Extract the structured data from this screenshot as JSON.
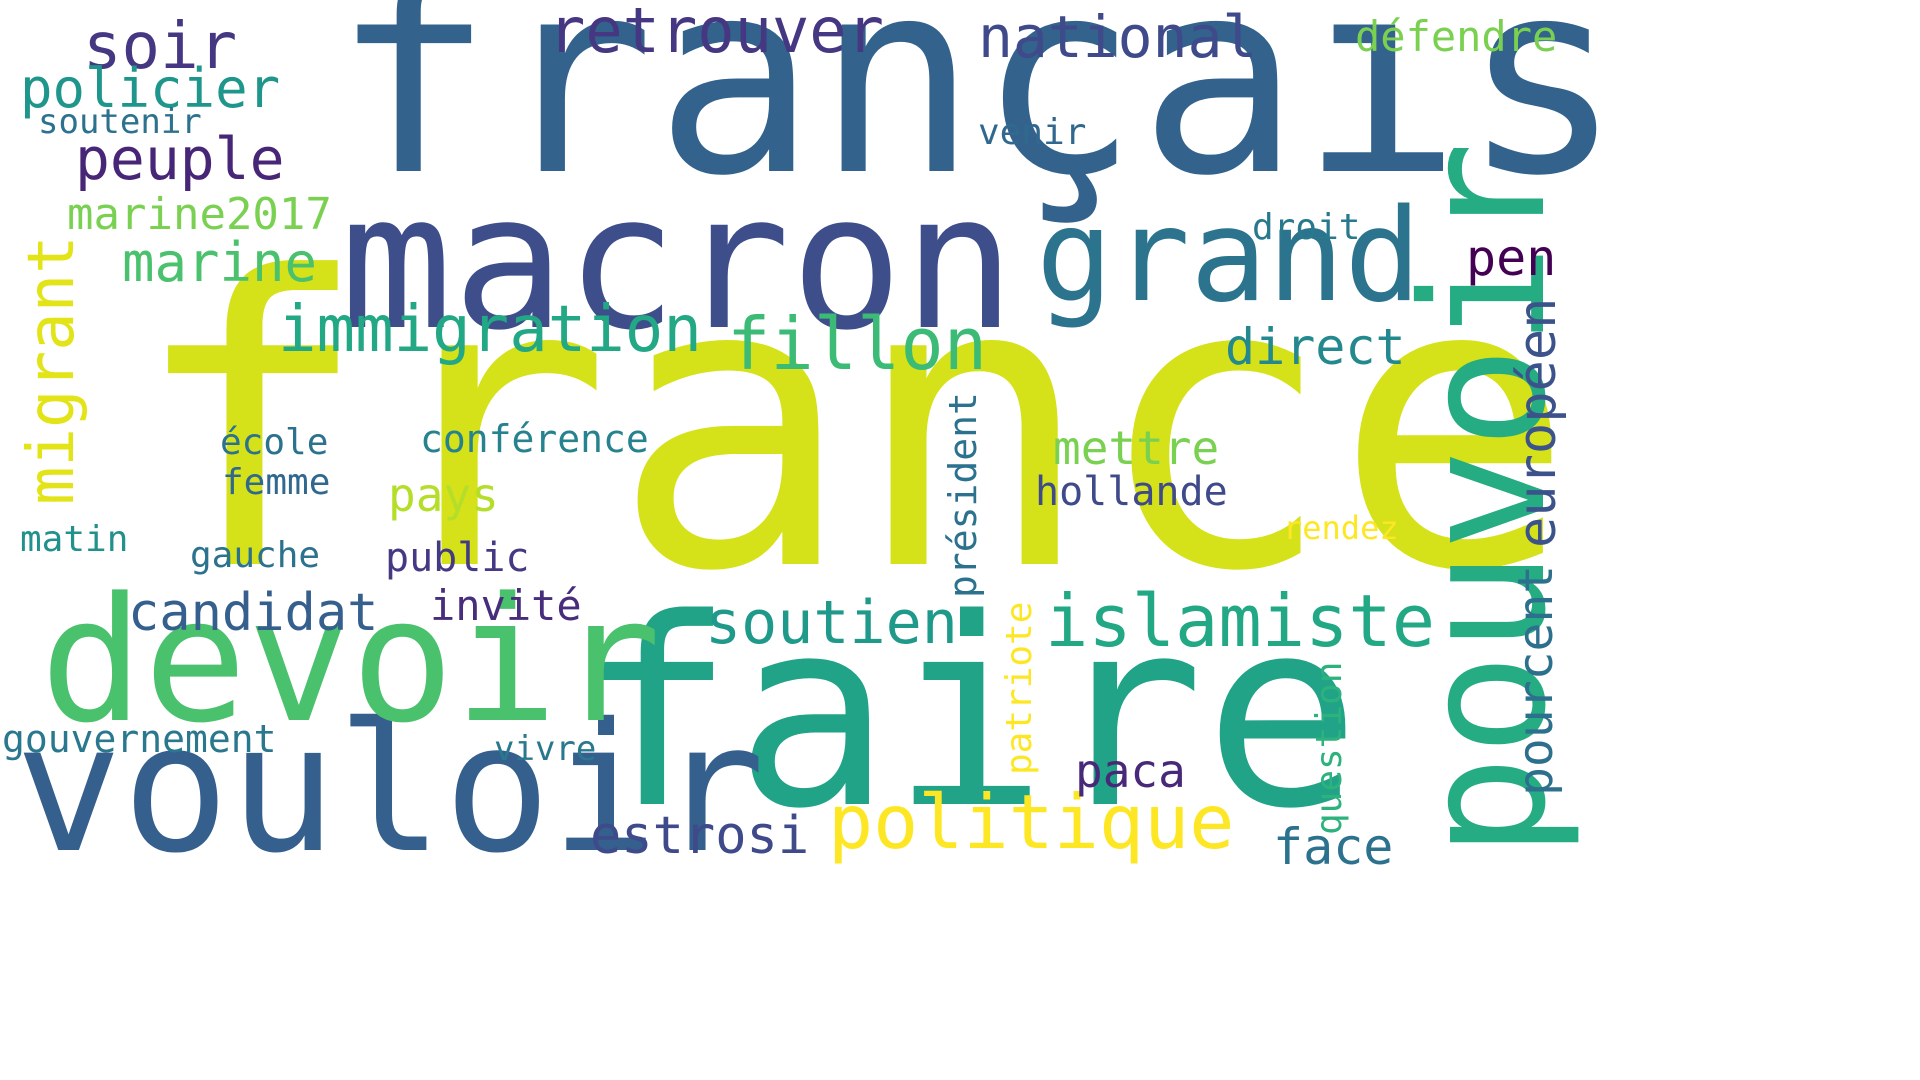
{
  "cloud": {
    "words": [
      {
        "text": "france",
        "color": "#d5e21a"
      },
      {
        "text": "français",
        "color": "#33638d"
      },
      {
        "text": "faire",
        "color": "#20a386"
      },
      {
        "text": "macron",
        "color": "#3d4e8a"
      },
      {
        "text": "vouloir",
        "color": "#355f8d"
      },
      {
        "text": "devoir",
        "color": "#4ac16d"
      },
      {
        "text": "pouvoir",
        "color": "#25ac82"
      },
      {
        "text": "grand",
        "color": "#2c738e"
      },
      {
        "text": "politique",
        "color": "#fde725"
      },
      {
        "text": "immigration",
        "color": "#22a884"
      },
      {
        "text": "islamiste",
        "color": "#22a884"
      },
      {
        "text": "fillon",
        "color": "#3bbb75"
      },
      {
        "text": "migrant",
        "color": "#e2e418"
      },
      {
        "text": "retrouver",
        "color": "#453781"
      },
      {
        "text": "soir",
        "color": "#453781"
      },
      {
        "text": "national",
        "color": "#3e4a89"
      },
      {
        "text": "policier",
        "color": "#1f968b"
      },
      {
        "text": "peuple",
        "color": "#482677"
      },
      {
        "text": "marine",
        "color": "#4ac16d"
      },
      {
        "text": "marine2017",
        "color": "#7ad151"
      },
      {
        "text": "candidat",
        "color": "#355f8d"
      },
      {
        "text": "soutien",
        "color": "#1f9a8a"
      },
      {
        "text": "européen",
        "color": "#3b528b"
      },
      {
        "text": "pourcent",
        "color": "#2d708e"
      },
      {
        "text": "estrosi",
        "color": "#3e4a89"
      },
      {
        "text": "face",
        "color": "#2c728e"
      },
      {
        "text": "direct",
        "color": "#23898e"
      },
      {
        "text": "pen",
        "color": "#440154"
      },
      {
        "text": "défendre",
        "color": "#7ad151"
      },
      {
        "text": "mettre",
        "color": "#7ad151"
      },
      {
        "text": "pays",
        "color": "#b5de2b"
      },
      {
        "text": "hollande",
        "color": "#3e4a89"
      },
      {
        "text": "gouvernement",
        "color": "#2a788e"
      },
      {
        "text": "conférence",
        "color": "#26828e"
      },
      {
        "text": "invité",
        "color": "#472d7b"
      },
      {
        "text": "paca",
        "color": "#482878"
      },
      {
        "text": "président",
        "color": "#2c728e"
      },
      {
        "text": "patriote",
        "color": "#fde725"
      },
      {
        "text": "question",
        "color": "#2db27d"
      },
      {
        "text": "soutenir",
        "color": "#2c728e"
      },
      {
        "text": "venir",
        "color": "#31688e"
      },
      {
        "text": "droit",
        "color": "#29798e"
      },
      {
        "text": "école",
        "color": "#2c728e"
      },
      {
        "text": "femme",
        "color": "#31688e"
      },
      {
        "text": "matin",
        "color": "#21918c"
      },
      {
        "text": "gauche",
        "color": "#2c728e"
      },
      {
        "text": "public",
        "color": "#443983"
      },
      {
        "text": "vivre",
        "color": "#2a788e"
      },
      {
        "text": "rendez",
        "color": "#fde725"
      }
    ]
  }
}
